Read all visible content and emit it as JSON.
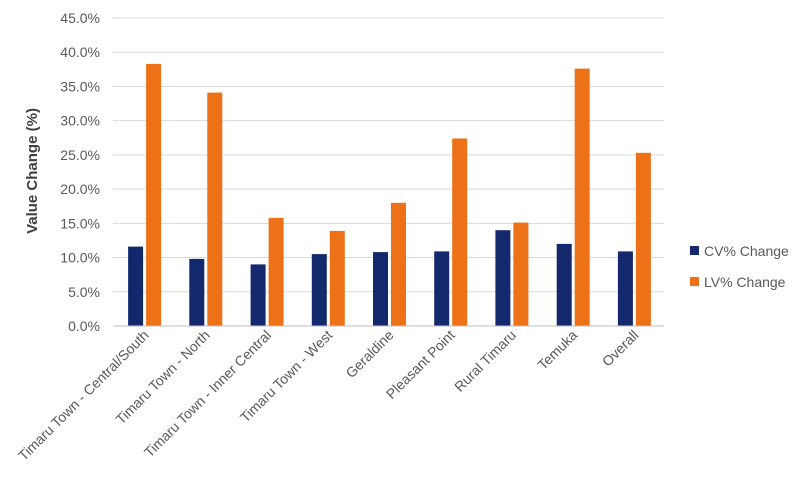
{
  "chart_data": {
    "type": "bar",
    "title": "",
    "xlabel": "",
    "ylabel": "Value Change (%)",
    "ylim": [
      0,
      45
    ],
    "ytick_step": 5,
    "ytick_format": "percent_1dp",
    "grid": true,
    "legend_position": "right",
    "categories": [
      "Timaru Town - Central/South",
      "Timaru Town - North",
      "Timaru Town - Inner Central",
      "Timaru Town - West",
      "Geraldine",
      "Pleasant Point",
      "Rural Timaru",
      "Temuka",
      "Overall"
    ],
    "series": [
      {
        "name": "CV% Change",
        "color": "#13286d",
        "values": [
          11.6,
          9.8,
          9.0,
          10.5,
          10.8,
          10.9,
          14.0,
          12.0,
          10.9
        ]
      },
      {
        "name": "LV% Change",
        "color": "#ed7117",
        "values": [
          38.3,
          34.1,
          15.8,
          13.9,
          18.0,
          27.4,
          15.1,
          37.6,
          25.3
        ]
      }
    ]
  }
}
